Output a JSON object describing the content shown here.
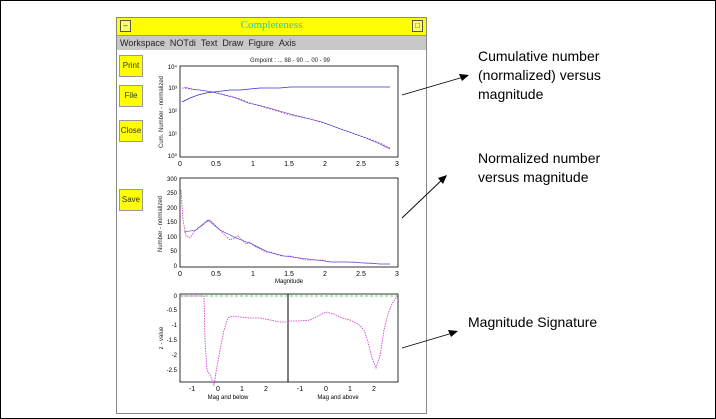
{
  "window": {
    "title": "Completeness",
    "close_glyph": "□",
    "menu": [
      "Workspace",
      "NOTdi",
      "Text",
      "Draw",
      "Figure",
      "Axis"
    ],
    "buttons": {
      "print": "Print",
      "file": "File",
      "close": "Close",
      "save": "Save"
    }
  },
  "plots": {
    "subtitle": "Gmpoint : ... 88 - 90   ... 00 - 99",
    "top": {
      "ylabel": "Cum. Number - normalized",
      "yticks": [
        "10³",
        "10²",
        "10¹",
        "10⁰"
      ],
      "ytop": "10⁴",
      "xticks": [
        "0",
        "0.5",
        "1",
        "1.5",
        "2",
        "2.5",
        "3"
      ]
    },
    "middle": {
      "ylabel": "Number - normalized",
      "yticks": [
        "300",
        "250",
        "200",
        "150",
        "100",
        "50",
        "0"
      ],
      "xticks": [
        "0",
        "0.5",
        "1",
        "1.5",
        "2",
        "2.5",
        "3"
      ],
      "xlabel": "Magnitude"
    },
    "bottom": {
      "ylabel": "z - value",
      "yticks": [
        "0",
        "-0.5",
        "-1",
        "-1.5",
        "-2",
        "-2.5"
      ],
      "xticks_left": [
        "-1",
        "0",
        "1",
        "2"
      ],
      "xticks_right": [
        "-1",
        "0",
        "1",
        "2"
      ],
      "xlabel_left": "Mag and below",
      "xlabel_right": "Mag and above"
    }
  },
  "annotations": {
    "cumulative": [
      "Cumulative number",
      "(normalized) versus",
      "magnitude"
    ],
    "normalized": [
      "Normalized number",
      "versus magnitude"
    ],
    "signature": "Magnitude Signature"
  }
}
